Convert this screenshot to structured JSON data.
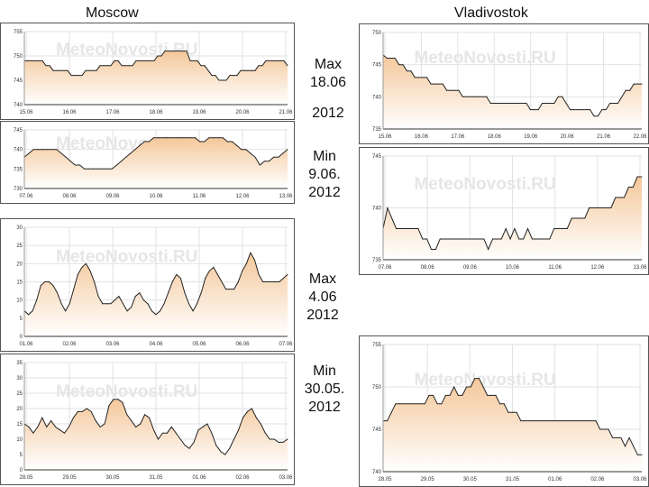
{
  "labels": {
    "moscow": "Moscow",
    "vladivostok": "Vladivostok",
    "note1": [
      "Max",
      "18.06"
    ],
    "note2": "2012",
    "note3": [
      "Min",
      "9.06.",
      "2012"
    ],
    "note4": [
      "Max",
      "4.06",
      "2012"
    ],
    "note5": [
      "Min",
      "30.05.",
      "2012"
    ]
  },
  "colors": {
    "line": "#222222",
    "fill_top": "#f4c79a",
    "fill_bottom": "#ffffff",
    "grid": "#e2e2e2"
  },
  "chart_data": [
    {
      "id": "m1",
      "type": "area",
      "watermark": "MeteoNovosti.RU",
      "ylim": [
        740,
        755
      ],
      "yticks": [
        "740",
        "745",
        "750",
        "755"
      ],
      "xticks": [
        "15.06",
        "16.06",
        "17.06",
        "18.06",
        "19.06",
        "20.06",
        "21.06"
      ],
      "values": [
        749,
        749,
        749,
        749,
        749,
        749,
        748,
        748,
        747,
        747,
        747,
        747,
        747,
        746,
        746,
        746,
        746,
        747,
        747,
        747,
        747,
        748,
        748,
        748,
        748,
        749,
        749,
        748,
        748,
        748,
        748,
        749,
        749,
        749,
        749,
        749,
        749,
        750,
        750,
        751,
        751,
        751,
        751,
        751,
        751,
        751,
        749,
        749,
        749,
        748,
        748,
        747,
        746,
        746,
        745,
        745,
        745,
        746,
        746,
        746,
        747,
        747,
        747,
        747,
        747,
        748,
        748,
        749,
        749,
        749,
        749,
        749,
        749,
        748
      ]
    },
    {
      "id": "m2",
      "type": "area",
      "watermark": "MeteoNovosti.RU",
      "ylim": [
        730,
        745
      ],
      "yticks": [
        "730",
        "735",
        "740",
        "745"
      ],
      "xticks": [
        "07.06",
        "08.06",
        "09.06",
        "10.06",
        "11.06",
        "12.06",
        "13.06"
      ],
      "values": [
        738,
        739,
        740,
        740,
        740,
        740,
        740,
        740,
        739,
        738,
        737,
        736,
        736,
        735,
        735,
        735,
        735,
        735,
        735,
        735,
        736,
        737,
        738,
        739,
        740,
        741,
        742,
        742,
        743,
        743,
        743,
        743,
        743,
        743,
        743,
        743,
        743,
        743,
        742,
        742,
        743,
        743,
        743,
        743,
        742,
        742,
        741,
        740,
        740,
        739,
        738,
        736,
        737,
        737,
        738,
        738,
        739,
        740
      ]
    },
    {
      "id": "m3",
      "type": "area",
      "watermark": "MeteoNovosti.RU",
      "ylim": [
        0,
        30
      ],
      "yticks": [
        "0",
        "5",
        "10",
        "15",
        "20",
        "25",
        "30"
      ],
      "xticks": [
        "01.06",
        "02.06",
        "03.06",
        "04.06",
        "05.06",
        "06.06",
        "07.06"
      ],
      "values": [
        7,
        6,
        7,
        10,
        14,
        15,
        15,
        14,
        12,
        9,
        7,
        9,
        13,
        17,
        19,
        20,
        18,
        15,
        11,
        9,
        9,
        9,
        10,
        11,
        9,
        7,
        8,
        11,
        12,
        10,
        9,
        7,
        6,
        7,
        9,
        12,
        15,
        17,
        16,
        12,
        9,
        7,
        9,
        12,
        16,
        18,
        19,
        17,
        15,
        13,
        13,
        13,
        15,
        18,
        20,
        23,
        21,
        17,
        15,
        15,
        15,
        15,
        15,
        16,
        17
      ]
    },
    {
      "id": "m4",
      "type": "area",
      "watermark": "MeteoNovosti.RU",
      "ylim": [
        0,
        35
      ],
      "yticks": [
        "0",
        "5",
        "10",
        "15",
        "20",
        "25",
        "30",
        "35"
      ],
      "xticks": [
        "28.05",
        "29.05",
        "30.05",
        "31.05",
        "01.06",
        "02.06",
        "03.06"
      ],
      "values": [
        15,
        14,
        12,
        14,
        17,
        14,
        16,
        14,
        13,
        12,
        14,
        17,
        19,
        19,
        20,
        19,
        16,
        14,
        15,
        21,
        23,
        23,
        22,
        18,
        16,
        14,
        15,
        18,
        17,
        13,
        10,
        12,
        12,
        14,
        12,
        10,
        8,
        7,
        9,
        13,
        14,
        15,
        12,
        8,
        6,
        5,
        7,
        10,
        13,
        17,
        19,
        20,
        17,
        15,
        12,
        10,
        10,
        9,
        9,
        10
      ]
    },
    {
      "id": "v1",
      "type": "area",
      "watermark": "MeteoNovosti.RU",
      "ylim": [
        735,
        750
      ],
      "yticks": [
        "735",
        "740",
        "745",
        "750"
      ],
      "xticks": [
        "15.06",
        "16.06",
        "17.06",
        "18.06",
        "19.06",
        "20.06",
        "21.06",
        "22.06"
      ],
      "values": [
        746.5,
        746,
        746,
        746,
        745,
        745,
        744,
        744,
        743,
        743,
        743,
        743,
        742,
        742,
        742,
        742,
        741,
        741,
        741,
        741,
        740,
        740,
        740,
        740,
        740,
        740,
        740,
        739,
        739,
        739,
        739,
        739,
        739,
        739,
        739,
        739,
        739,
        738,
        738,
        738,
        739,
        739,
        739,
        739,
        740,
        740,
        739,
        738,
        738,
        738,
        738,
        738,
        738,
        737,
        737,
        738,
        738,
        739,
        739,
        739,
        740,
        741,
        741,
        742,
        742,
        742
      ]
    },
    {
      "id": "v2",
      "type": "area",
      "watermark": "MeteoNovosti.RU",
      "ylim": [
        735,
        745
      ],
      "yticks": [
        "735",
        "740",
        "745"
      ],
      "xticks": [
        "07.06",
        "08.06",
        "09.06",
        "10.06",
        "11.06",
        "12.06",
        "13.06"
      ],
      "values": [
        738,
        740,
        739,
        738,
        738,
        738,
        738,
        738,
        738,
        737,
        737,
        736,
        736,
        737,
        737,
        737,
        737,
        737,
        737,
        737,
        737,
        737,
        737,
        737,
        736,
        737,
        737,
        737,
        738,
        737,
        738,
        737,
        737,
        738,
        737,
        737,
        737,
        737,
        737,
        738,
        738,
        738,
        738,
        739,
        739,
        739,
        739,
        740,
        740,
        740,
        740,
        740,
        740,
        741,
        741,
        741,
        742,
        742,
        743,
        743
      ]
    },
    {
      "id": "v3",
      "type": "area",
      "watermark": "MeteoNovosti.RU",
      "ylim": [
        740,
        755
      ],
      "yticks": [
        "740",
        "745",
        "750",
        "755"
      ],
      "xticks": [
        "28.05",
        "29.05",
        "30.05",
        "31.05",
        "01.06",
        "02.06",
        "03.06"
      ],
      "values": [
        746,
        746,
        747,
        748,
        748,
        748,
        748,
        748,
        748,
        748,
        748,
        749,
        749,
        748,
        748,
        749,
        749,
        750,
        749,
        749,
        750,
        750,
        751,
        751,
        750,
        749,
        749,
        749,
        748,
        748,
        747,
        747,
        747,
        746,
        746,
        746,
        746,
        746,
        746,
        746,
        746,
        746,
        746,
        746,
        746,
        746,
        746,
        746,
        746,
        746,
        746,
        746,
        745,
        745,
        745,
        744,
        744,
        744,
        743,
        744,
        743,
        742,
        742
      ]
    }
  ]
}
